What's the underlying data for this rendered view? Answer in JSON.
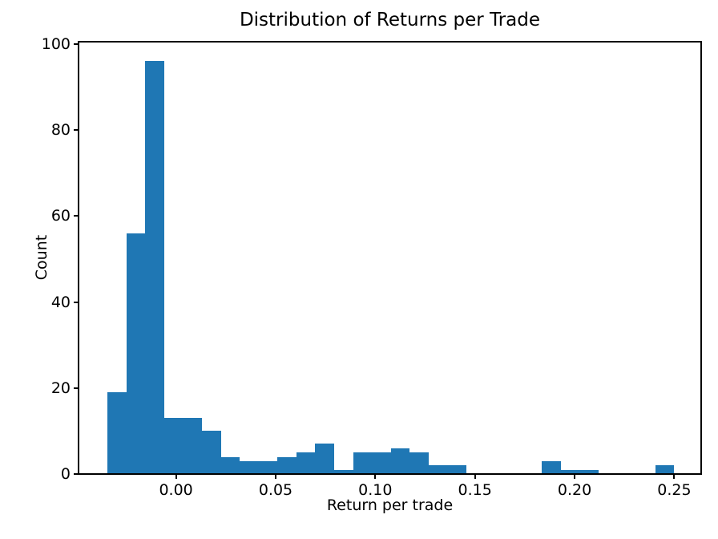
{
  "figure": {
    "background": "#ffffff",
    "text_color": "#000000"
  },
  "chart_data": {
    "type": "bar",
    "subtype": "histogram",
    "title": "Distribution of Returns per Trade",
    "xlabel": "Return per trade",
    "ylabel": "Count",
    "bar_color": "#1f77b4",
    "axis_color": "#000000",
    "grid": false,
    "legend": false,
    "bin_start": -0.03435,
    "bin_width": 0.009478,
    "bin_counts": [
      19,
      56,
      96,
      13,
      13,
      10,
      4,
      3,
      3,
      4,
      5,
      7,
      1,
      5,
      5,
      6,
      5,
      2,
      2,
      0,
      0,
      0,
      0,
      3,
      1,
      1,
      0,
      0,
      0,
      2
    ],
    "xlim": [
      -0.0489,
      0.2635
    ],
    "ylim": [
      0,
      100.55
    ],
    "x_ticks": [
      {
        "value": 0.0,
        "label": "0.00"
      },
      {
        "value": 0.05,
        "label": "0.05"
      },
      {
        "value": 0.1,
        "label": "0.10"
      },
      {
        "value": 0.15,
        "label": "0.15"
      },
      {
        "value": 0.2,
        "label": "0.20"
      },
      {
        "value": 0.25,
        "label": "0.25"
      }
    ],
    "y_ticks": [
      {
        "value": 0,
        "label": "0"
      },
      {
        "value": 20,
        "label": "20"
      },
      {
        "value": 40,
        "label": "40"
      },
      {
        "value": 60,
        "label": "60"
      },
      {
        "value": 80,
        "label": "80"
      },
      {
        "value": 100,
        "label": "100"
      }
    ]
  }
}
